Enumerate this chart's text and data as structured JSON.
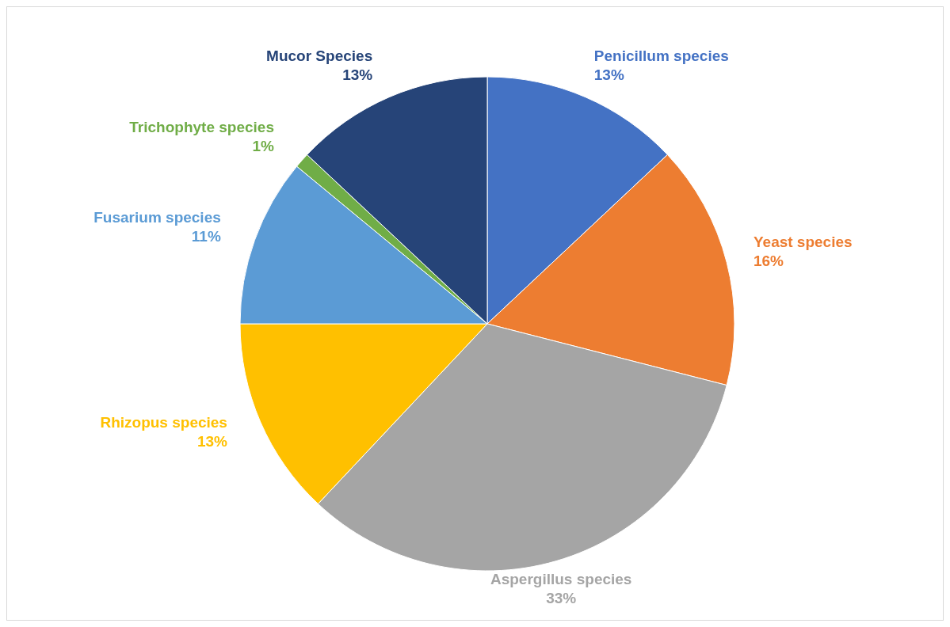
{
  "chart_data": {
    "type": "pie",
    "categories": [
      "Penicillum species",
      "Yeast species",
      "Aspergillus species",
      "Rhizopus species",
      "Fusarium species",
      "Trichophyte species",
      "Mucor Species"
    ],
    "values": [
      13,
      16,
      33,
      13,
      11,
      1,
      13
    ],
    "colors": [
      "#4472c4",
      "#ed7d31",
      "#a5a5a5",
      "#ffc000",
      "#5b9bd5",
      "#70ad47",
      "#264478"
    ],
    "value_labels": [
      "13%",
      "16%",
      "33%",
      "13%",
      "11%",
      "1%",
      "13%"
    ],
    "legend": false
  }
}
